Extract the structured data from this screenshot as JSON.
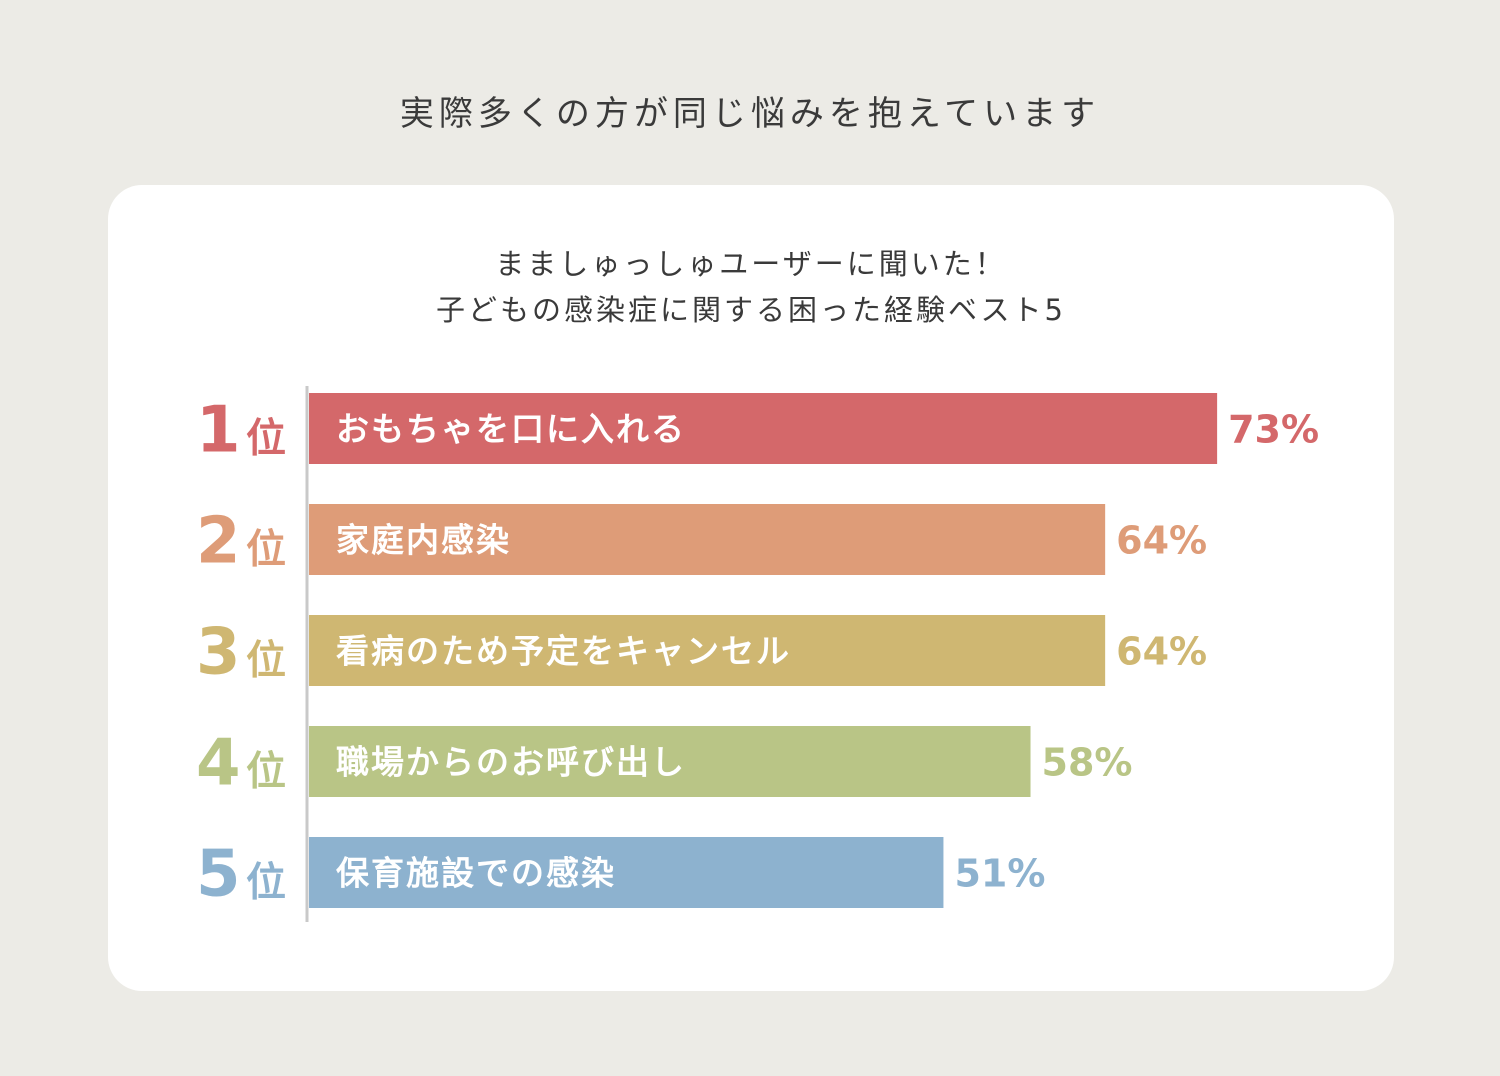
{
  "page": {
    "headline": "実際多くの方が同じ悩みを抱えています"
  },
  "chart_data": {
    "type": "bar",
    "orientation": "horizontal",
    "title_line1": "まましゅっしゅユーザーに聞いた！",
    "title_line2": "子どもの感染症に関する困った経験ベスト5",
    "rank_suffix": "位",
    "value_suffix": "%",
    "xlim": [
      0,
      100
    ],
    "categories": [
      "おもちゃを口に入れる",
      "家庭内感染",
      "看病のため予定をキャンセル",
      "職場からのお呼び出し",
      "保育施設での感染"
    ],
    "ranks": [
      "1",
      "2",
      "3",
      "4",
      "5"
    ],
    "values": [
      73,
      64,
      64,
      58,
      51
    ],
    "colors": [
      "#d4686a",
      "#de9c78",
      "#cfb772",
      "#b9c586",
      "#8db2cf"
    ]
  }
}
